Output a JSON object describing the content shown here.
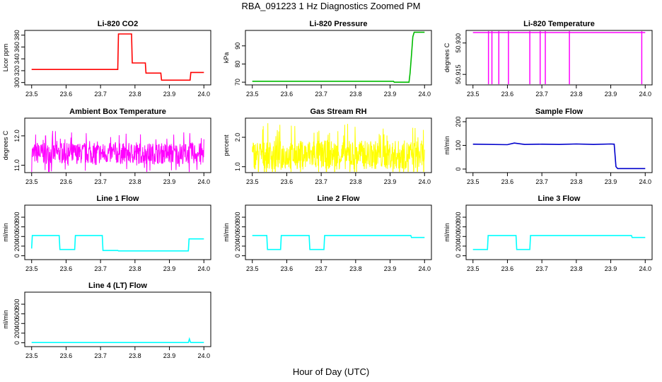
{
  "figure": {
    "title": "RBA_091223  1 Hz Diagnostics Zoomed PM",
    "xlabel": "Hour of Day (UTC)"
  },
  "chart_data": [
    {
      "type": "line",
      "title": "Li-820 CO2",
      "ylabel": "Licor ppm",
      "color": "#ff0000",
      "xlim": [
        23.48,
        24.02
      ],
      "ylim": [
        296,
        388
      ],
      "xticks": [
        "23.5",
        "23.6",
        "23.7",
        "23.8",
        "23.9",
        "24.0"
      ],
      "yticks": [
        "300",
        "320",
        "340",
        "360",
        "380"
      ],
      "series": [
        {
          "x": [
            23.5,
            23.75,
            23.752,
            23.79,
            23.792,
            23.83,
            23.832,
            23.875,
            23.877,
            23.96,
            23.962,
            24.0
          ],
          "y": [
            322,
            322,
            382,
            382,
            333,
            333,
            316,
            316,
            304,
            304,
            317,
            317
          ]
        }
      ]
    },
    {
      "type": "line",
      "title": "Li-820 Pressure",
      "ylabel": "kPa",
      "color": "#00bb00",
      "xlim": [
        23.48,
        24.02
      ],
      "ylim": [
        68.5,
        98.5
      ],
      "xticks": [
        "23.5",
        "23.6",
        "23.7",
        "23.8",
        "23.9",
        "24.0"
      ],
      "yticks": [
        "70",
        "80",
        "90"
      ],
      "series": [
        {
          "x": [
            23.5,
            23.91,
            23.912,
            23.955,
            23.958,
            23.962,
            23.966,
            23.97,
            24.0
          ],
          "y": [
            70.5,
            70.5,
            70,
            70,
            75,
            85,
            95,
            97.5,
            97.5
          ]
        }
      ]
    },
    {
      "type": "line",
      "title": "Li-820 Temperature",
      "ylabel": "degrees C",
      "color": "#ff00ff",
      "xlim": [
        23.48,
        24.02
      ],
      "ylim": [
        50.91,
        50.936
      ],
      "xticks": [
        "23.5",
        "23.6",
        "23.7",
        "23.8",
        "23.9",
        "24.0"
      ],
      "yticks": [
        "50.915",
        "50.930"
      ],
      "spikes": [
        23.545,
        23.555,
        23.575,
        23.603,
        23.665,
        23.695,
        23.71,
        23.78,
        23.99
      ],
      "series": [
        {
          "x": [
            23.5,
            24.0
          ],
          "y": [
            50.935,
            50.935
          ]
        }
      ]
    },
    {
      "type": "line",
      "title": "Ambient Box Temperature",
      "ylabel": "degrees C",
      "color": "#ff00ff",
      "xlim": [
        23.48,
        24.02
      ],
      "ylim": [
        10.75,
        12.6
      ],
      "xticks": [
        "23.5",
        "23.6",
        "23.7",
        "23.8",
        "23.9",
        "24.0"
      ],
      "yticks": [
        "11.0",
        "12.0"
      ],
      "noise": {
        "center": 11.4,
        "amp": 0.65,
        "n": 600
      }
    },
    {
      "type": "line",
      "title": "Gas Stream RH",
      "ylabel": "percent",
      "color": "#ffff00",
      "xlim": [
        23.48,
        24.02
      ],
      "ylim": [
        0.8,
        2.65
      ],
      "xticks": [
        "23.5",
        "23.6",
        "23.7",
        "23.8",
        "23.9",
        "24.0"
      ],
      "yticks": [
        "1.0",
        "2.0"
      ],
      "noise": {
        "center": 1.4,
        "amp": 0.9,
        "n": 600
      }
    },
    {
      "type": "line",
      "title": "Sample Flow",
      "ylabel": "ml/min",
      "color": "#0000cc",
      "xlim": [
        23.48,
        24.02
      ],
      "ylim": [
        -15,
        215
      ],
      "xticks": [
        "23.5",
        "23.6",
        "23.7",
        "23.8",
        "23.9",
        "24.0"
      ],
      "yticks": [
        "0",
        "100",
        "200"
      ],
      "series": [
        {
          "x": [
            23.5,
            23.6,
            23.62,
            23.65,
            23.7,
            23.75,
            23.8,
            23.85,
            23.9,
            23.91,
            23.915,
            23.92,
            24.0
          ],
          "y": [
            105,
            103,
            110,
            104,
            105,
            104,
            106,
            104,
            106,
            105,
            10,
            2,
            2
          ]
        }
      ]
    },
    {
      "type": "line",
      "title": "Line 1 Flow",
      "ylabel": "ml/min",
      "color": "#00ffff",
      "xlim": [
        23.48,
        24.02
      ],
      "ylim": [
        -80,
        1050
      ],
      "xticks": [
        "23.5",
        "23.6",
        "23.7",
        "23.8",
        "23.9",
        "24.0"
      ],
      "yticks": [
        "0",
        "200",
        "400",
        "600",
        "800"
      ],
      "series": [
        {
          "x": [
            23.5,
            23.502,
            23.58,
            23.582,
            23.625,
            23.627,
            23.705,
            23.707,
            23.75,
            23.752,
            23.955,
            23.957,
            24.0
          ],
          "y": [
            150,
            420,
            420,
            130,
            130,
            420,
            420,
            110,
            110,
            100,
            100,
            350,
            350
          ]
        }
      ]
    },
    {
      "type": "line",
      "title": "Line 2 Flow",
      "ylabel": "ml/min",
      "color": "#00ffff",
      "xlim": [
        23.48,
        24.02
      ],
      "ylim": [
        -80,
        1050
      ],
      "xticks": [
        "23.5",
        "23.6",
        "23.7",
        "23.8",
        "23.9",
        "24.0"
      ],
      "yticks": [
        "0",
        "200",
        "400",
        "600",
        "800"
      ],
      "series": [
        {
          "x": [
            23.5,
            23.542,
            23.544,
            23.582,
            23.584,
            23.665,
            23.667,
            23.708,
            23.71,
            23.96,
            23.962,
            24.0
          ],
          "y": [
            420,
            420,
            130,
            130,
            420,
            420,
            130,
            130,
            420,
            420,
            380,
            380
          ]
        }
      ]
    },
    {
      "type": "line",
      "title": "Line 3 Flow",
      "ylabel": "ml/min",
      "color": "#00ffff",
      "xlim": [
        23.48,
        24.02
      ],
      "ylim": [
        -80,
        1050
      ],
      "xticks": [
        "23.5",
        "23.6",
        "23.7",
        "23.8",
        "23.9",
        "24.0"
      ],
      "yticks": [
        "0",
        "200",
        "400",
        "600",
        "800"
      ],
      "series": [
        {
          "x": [
            23.5,
            23.502,
            23.542,
            23.544,
            23.625,
            23.627,
            23.665,
            23.667,
            23.96,
            23.962,
            24.0
          ],
          "y": [
            130,
            130,
            130,
            420,
            420,
            130,
            130,
            420,
            420,
            380,
            380
          ]
        }
      ]
    },
    {
      "type": "line",
      "title": "Line 4 (LT) Flow",
      "ylabel": "ml/min",
      "color": "#00ffff",
      "xlim": [
        23.48,
        24.02
      ],
      "ylim": [
        -80,
        1050
      ],
      "xticks": [
        "23.5",
        "23.6",
        "23.7",
        "23.8",
        "23.9",
        "24.0"
      ],
      "yticks": [
        "0",
        "200",
        "400",
        "600",
        "800"
      ],
      "series": [
        {
          "x": [
            23.5,
            23.955,
            23.958,
            23.961,
            23.964,
            24.0
          ],
          "y": [
            5,
            5,
            80,
            10,
            5,
            5
          ]
        }
      ]
    }
  ]
}
